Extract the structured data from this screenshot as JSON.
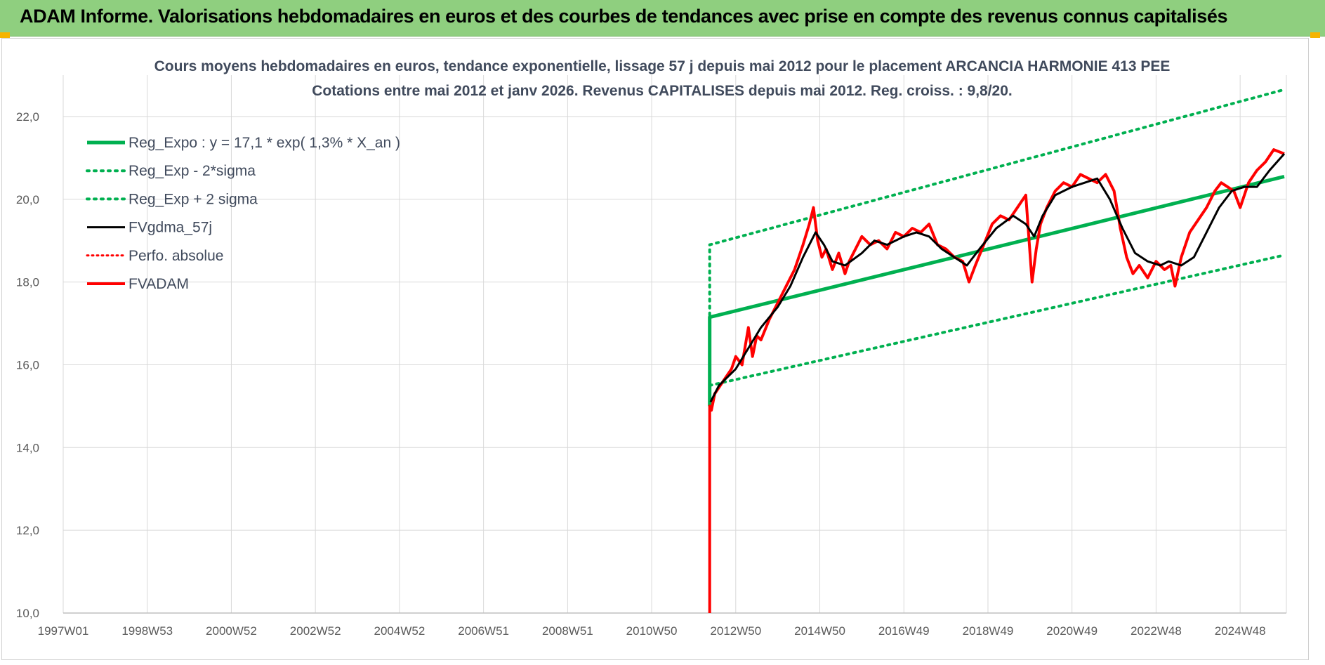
{
  "header": {
    "title": "ADAM Informe. Valorisations hebdomadaires en euros et des courbes de tendances avec prise en compte des revenus connus capitalisés"
  },
  "colors": {
    "header_bg": "#8fcf7f",
    "reg_green": "#00b050",
    "fvgdma": "#000000",
    "fvadam": "#ff0000",
    "grid": "#d9d9d9"
  },
  "chart_data": {
    "type": "line",
    "title": "Cours moyens hebdomadaires en euros, tendance exponentielle, lissage 57 j depuis mai 2012 pour le placement ARCANCIA HARMONIE 413 PEE",
    "subtitle": "Cotations entre mai 2012 et janv 2026. Revenus CAPITALISES depuis mai 2012. Reg. croiss. : 9,8/20.",
    "ylim": [
      10,
      23
    ],
    "yticks": [
      "10,0",
      "12,0",
      "14,0",
      "16,0",
      "18,0",
      "20,0",
      "22,0"
    ],
    "ytick_values": [
      10,
      12,
      14,
      16,
      18,
      20,
      22
    ],
    "xlim": [
      1997.0,
      2026.1
    ],
    "xticks": [
      "1997W01",
      "1998W53",
      "2000W52",
      "2002W52",
      "2004W52",
      "2006W51",
      "2008W51",
      "2010W50",
      "2012W50",
      "2014W50",
      "2016W49",
      "2018W49",
      "2020W49",
      "2022W48",
      "2024W48"
    ],
    "xtick_values": [
      1997.0,
      1999.0,
      2001.0,
      2003.0,
      2005.0,
      2007.0,
      2009.0,
      2011.0,
      2013.0,
      2015.0,
      2017.0,
      2019.0,
      2021.0,
      2023.0,
      2025.0
    ],
    "grid": true,
    "legend_position": "top-left",
    "series": [
      {
        "name": "Reg_Expo : y = 17,1 * exp( 1,3% *  X_an )",
        "style": "solid",
        "color": "#00b050",
        "width": 5,
        "x": [
          2012.38,
          2012.38,
          2026.05
        ],
        "y": [
          15.0,
          17.15,
          20.55
        ]
      },
      {
        "name": "Reg_Exp - 2*sigma",
        "style": "dotted",
        "color": "#00b050",
        "width": 4,
        "x": [
          2012.38,
          2026.05
        ],
        "y": [
          15.5,
          18.65
        ]
      },
      {
        "name": "Reg_Exp + 2 sigma",
        "style": "dotted",
        "color": "#00b050",
        "width": 4,
        "x": [
          2012.38,
          2012.38,
          2026.05
        ],
        "y": [
          17.2,
          18.9,
          22.65
        ]
      },
      {
        "name": "FVgdma_57j",
        "style": "solid",
        "color": "#000000",
        "width": 3,
        "x": [
          2012.4,
          2012.6,
          2013.0,
          2013.3,
          2013.6,
          2014.0,
          2014.3,
          2014.6,
          2014.9,
          2015.1,
          2015.3,
          2015.6,
          2016.0,
          2016.3,
          2016.6,
          2017.0,
          2017.3,
          2017.6,
          2017.9,
          2018.2,
          2018.5,
          2018.8,
          2019.2,
          2019.6,
          2019.9,
          2020.1,
          2020.3,
          2020.6,
          2021.0,
          2021.3,
          2021.6,
          2021.9,
          2022.2,
          2022.5,
          2022.8,
          2023.1,
          2023.3,
          2023.6,
          2023.9,
          2024.2,
          2024.5,
          2024.8,
          2025.1,
          2025.4,
          2025.7,
          2026.05
        ],
        "y": [
          15.1,
          15.5,
          15.9,
          16.4,
          16.9,
          17.4,
          17.9,
          18.6,
          19.2,
          18.9,
          18.5,
          18.4,
          18.7,
          19.0,
          18.9,
          19.1,
          19.2,
          19.1,
          18.8,
          18.6,
          18.4,
          18.8,
          19.3,
          19.6,
          19.4,
          19.1,
          19.6,
          20.1,
          20.3,
          20.4,
          20.5,
          20.0,
          19.3,
          18.7,
          18.5,
          18.4,
          18.5,
          18.4,
          18.6,
          19.2,
          19.8,
          20.2,
          20.3,
          20.3,
          20.7,
          21.1
        ]
      },
      {
        "name": "Perfo. absolue",
        "style": "dotted",
        "color": "#ff0000",
        "width": 3,
        "x": [],
        "y": []
      },
      {
        "name": "FVADAM",
        "style": "solid",
        "color": "#ff0000",
        "width": 4,
        "x": [
          2012.38,
          2012.38,
          2012.42,
          2012.5,
          2012.7,
          2012.9,
          2013.0,
          2013.15,
          2013.3,
          2013.4,
          2013.5,
          2013.6,
          2013.8,
          2014.0,
          2014.2,
          2014.4,
          2014.6,
          2014.75,
          2014.85,
          2014.95,
          2015.05,
          2015.15,
          2015.3,
          2015.45,
          2015.6,
          2015.7,
          2015.85,
          2016.0,
          2016.2,
          2016.4,
          2016.6,
          2016.8,
          2017.0,
          2017.2,
          2017.4,
          2017.6,
          2017.8,
          2018.0,
          2018.2,
          2018.4,
          2018.55,
          2018.7,
          2018.9,
          2019.1,
          2019.3,
          2019.5,
          2019.7,
          2019.9,
          2020.05,
          2020.15,
          2020.25,
          2020.4,
          2020.6,
          2020.8,
          2021.0,
          2021.2,
          2021.4,
          2021.6,
          2021.8,
          2022.0,
          2022.15,
          2022.3,
          2022.45,
          2022.6,
          2022.8,
          2023.0,
          2023.2,
          2023.35,
          2023.45,
          2023.6,
          2023.8,
          2024.0,
          2024.2,
          2024.4,
          2024.55,
          2024.7,
          2024.85,
          2025.0,
          2025.2,
          2025.4,
          2025.6,
          2025.8,
          2026.05
        ],
        "y": [
          10.0,
          15.0,
          14.9,
          15.3,
          15.6,
          15.9,
          16.2,
          16.0,
          16.9,
          16.2,
          16.7,
          16.6,
          17.1,
          17.5,
          17.9,
          18.3,
          18.9,
          19.4,
          19.8,
          19.0,
          18.6,
          18.8,
          18.3,
          18.7,
          18.2,
          18.5,
          18.8,
          19.1,
          18.9,
          19.0,
          18.8,
          19.2,
          19.1,
          19.3,
          19.2,
          19.4,
          18.9,
          18.8,
          18.6,
          18.5,
          18.0,
          18.4,
          18.9,
          19.4,
          19.6,
          19.5,
          19.8,
          20.1,
          18.0,
          18.8,
          19.4,
          19.8,
          20.2,
          20.4,
          20.3,
          20.6,
          20.5,
          20.4,
          20.6,
          20.2,
          19.3,
          18.6,
          18.2,
          18.4,
          18.1,
          18.5,
          18.3,
          18.4,
          17.9,
          18.6,
          19.2,
          19.5,
          19.8,
          20.2,
          20.4,
          20.3,
          20.2,
          19.8,
          20.4,
          20.7,
          20.9,
          21.2,
          21.1
        ]
      }
    ]
  }
}
